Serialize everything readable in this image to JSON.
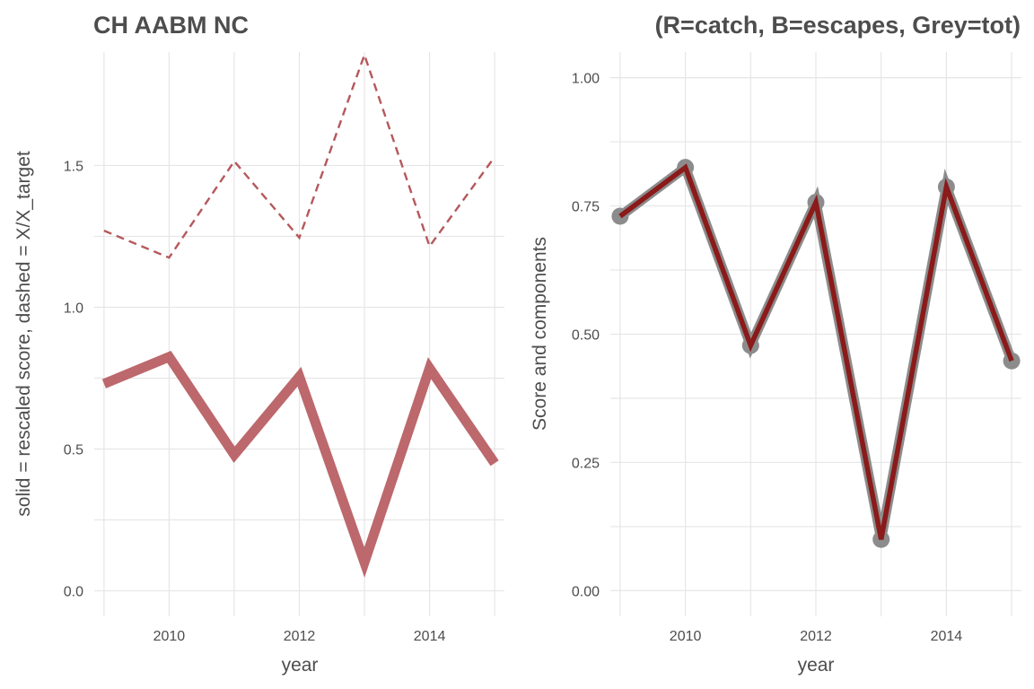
{
  "chart_data": [
    {
      "type": "line",
      "title": "CH AABM NC",
      "xlabel": "year",
      "ylabel": "solid = rescaled score, dashed = X/X_target",
      "xlim": [
        2008.85,
        2015.15
      ],
      "ylim": [
        -0.09,
        1.9
      ],
      "x_ticks": [
        2010,
        2012,
        2014
      ],
      "y_ticks": [
        0.0,
        0.5,
        1.0,
        1.5
      ],
      "y_tick_labels": [
        "0.0",
        "0.5",
        "1.0",
        "1.5"
      ],
      "grid": true,
      "x": [
        2009,
        2010,
        2011,
        2012,
        2013,
        2014,
        2015
      ],
      "series": [
        {
          "style": "solid",
          "color": "#b5585c",
          "values": [
            0.73,
            0.825,
            0.48,
            0.755,
            0.1,
            0.785,
            0.45
          ]
        },
        {
          "style": "dashed",
          "color": "#b5585c",
          "values": [
            1.27,
            1.175,
            1.515,
            1.245,
            1.89,
            1.215,
            1.53
          ]
        }
      ]
    },
    {
      "type": "line",
      "title": "(R=catch, B=escapes, Grey=tot)",
      "xlabel": "year",
      "ylabel": "Score and components",
      "xlim": [
        2008.85,
        2015.15
      ],
      "ylim": [
        -0.05,
        1.05
      ],
      "x_ticks": [
        2010,
        2012,
        2014
      ],
      "y_ticks": [
        0.0,
        0.25,
        0.5,
        0.75,
        1.0
      ],
      "y_tick_labels": [
        "0.00",
        "0.25",
        "0.50",
        "0.75",
        "1.00"
      ],
      "grid": true,
      "x": [
        2009,
        2010,
        2011,
        2012,
        2013,
        2014,
        2015
      ],
      "series": [
        {
          "style": "solid-points",
          "color": "#8c8c8c",
          "values": [
            0.73,
            0.825,
            0.478,
            0.757,
            0.1,
            0.787,
            0.448
          ]
        },
        {
          "style": "solid",
          "color": "#8b1a1a",
          "values": [
            0.73,
            0.825,
            0.478,
            0.757,
            0.1,
            0.787,
            0.448
          ]
        }
      ]
    }
  ]
}
